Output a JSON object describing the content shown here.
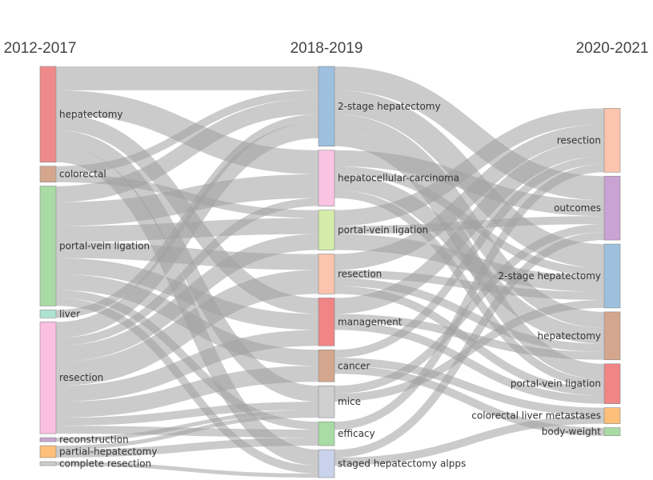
{
  "chart_data": {
    "type": "sankey",
    "columns": [
      {
        "title": "2012-2017",
        "nodes": [
          {
            "id": "a_hep",
            "label": "hepatectomy",
            "color": "#f08a8a"
          },
          {
            "id": "a_col",
            "label": "colorectal",
            "color": "#d4a68e"
          },
          {
            "id": "a_pvl",
            "label": "portal-vein ligation",
            "color": "#a9dba4"
          },
          {
            "id": "a_liv",
            "label": "liver",
            "color": "#ade3d3"
          },
          {
            "id": "a_res",
            "label": "resection",
            "color": "#fbbfe0"
          },
          {
            "id": "a_rec",
            "label": "reconstruction",
            "color": "#c9a3d3"
          },
          {
            "id": "a_par",
            "label": "partial-hepatectomy",
            "color": "#fdbf7a"
          },
          {
            "id": "a_com",
            "label": "complete resection",
            "color": "#cccccc"
          }
        ]
      },
      {
        "title": "2018-2019",
        "nodes": [
          {
            "id": "b_2st",
            "label": "2-stage hepatectomy",
            "color": "#9dc0de"
          },
          {
            "id": "b_hcc",
            "label": "hepatocellular-carcinoma",
            "color": "#fbc3e3"
          },
          {
            "id": "b_pvl",
            "label": "portal-vein ligation",
            "color": "#d5eca9"
          },
          {
            "id": "b_res",
            "label": "resection",
            "color": "#fcc4ad"
          },
          {
            "id": "b_man",
            "label": "management",
            "color": "#ef8585"
          },
          {
            "id": "b_can",
            "label": "cancer",
            "color": "#d4a68e"
          },
          {
            "id": "b_mic",
            "label": "mice",
            "color": "#d0d0d0"
          },
          {
            "id": "b_eff",
            "label": "efficacy",
            "color": "#a9dba4"
          },
          {
            "id": "b_sta",
            "label": "staged hepatectomy alpps",
            "color": "#c8d2ea"
          }
        ]
      },
      {
        "title": "2020-2021",
        "nodes": [
          {
            "id": "c_res",
            "label": "resection",
            "color": "#fcc4ad"
          },
          {
            "id": "c_out",
            "label": "outcomes",
            "color": "#c9a3d3"
          },
          {
            "id": "c_2st",
            "label": "2-stage hepatectomy",
            "color": "#9dc0de"
          },
          {
            "id": "c_hep",
            "label": "hepatectomy",
            "color": "#d4a68e"
          },
          {
            "id": "c_pvl",
            "label": "portal-vein ligation",
            "color": "#ef8585"
          },
          {
            "id": "c_clm",
            "label": "colorectal liver metastases",
            "color": "#fdbf7a"
          },
          {
            "id": "c_bw",
            "label": "body-weight",
            "color": "#a9dba4"
          }
        ]
      }
    ],
    "links": [
      {
        "source": "a_hep",
        "target": "b_2st",
        "value": 3
      },
      {
        "source": "a_hep",
        "target": "b_hcc",
        "value": 3
      },
      {
        "source": "a_hep",
        "target": "b_man",
        "value": 2
      },
      {
        "source": "a_hep",
        "target": "b_mic",
        "value": 2
      },
      {
        "source": "a_hep",
        "target": "b_sta",
        "value": 2
      },
      {
        "source": "a_col",
        "target": "b_2st",
        "value": 1
      },
      {
        "source": "a_col",
        "target": "b_pvl",
        "value": 1
      },
      {
        "source": "a_pvl",
        "target": "b_2st",
        "value": 2
      },
      {
        "source": "a_pvl",
        "target": "b_hcc",
        "value": 3
      },
      {
        "source": "a_pvl",
        "target": "b_pvl",
        "value": 2
      },
      {
        "source": "a_pvl",
        "target": "b_res",
        "value": 2
      },
      {
        "source": "a_pvl",
        "target": "b_man",
        "value": 2
      },
      {
        "source": "a_pvl",
        "target": "b_can",
        "value": 2
      },
      {
        "source": "a_pvl",
        "target": "b_eff",
        "value": 1
      },
      {
        "source": "a_pvl",
        "target": "b_sta",
        "value": 1
      },
      {
        "source": "a_liv",
        "target": "b_2st",
        "value": 1
      },
      {
        "source": "a_res",
        "target": "b_2st",
        "value": 2
      },
      {
        "source": "a_res",
        "target": "b_hcc",
        "value": 1
      },
      {
        "source": "a_res",
        "target": "b_pvl",
        "value": 2
      },
      {
        "source": "a_res",
        "target": "b_res",
        "value": 3
      },
      {
        "source": "a_res",
        "target": "b_man",
        "value": 2
      },
      {
        "source": "a_res",
        "target": "b_can",
        "value": 2
      },
      {
        "source": "a_res",
        "target": "b_mic",
        "value": 1
      },
      {
        "source": "a_res",
        "target": "b_eff",
        "value": 1
      },
      {
        "source": "a_rec",
        "target": "b_mic",
        "value": 0.5
      },
      {
        "source": "a_par",
        "target": "b_eff",
        "value": 1
      },
      {
        "source": "a_par",
        "target": "b_mic",
        "value": 0.5
      },
      {
        "source": "a_com",
        "target": "b_sta",
        "value": 0.5
      },
      {
        "source": "b_2st",
        "target": "c_out",
        "value": 3
      },
      {
        "source": "b_2st",
        "target": "c_2st",
        "value": 3
      },
      {
        "source": "b_2st",
        "target": "c_pvl",
        "value": 2
      },
      {
        "source": "b_2st",
        "target": "c_hep",
        "value": 2
      },
      {
        "source": "b_hcc",
        "target": "c_out",
        "value": 2
      },
      {
        "source": "b_hcc",
        "target": "c_2st",
        "value": 1
      },
      {
        "source": "b_hcc",
        "target": "c_hep",
        "value": 2
      },
      {
        "source": "b_hcc",
        "target": "c_pvl",
        "value": 1
      },
      {
        "source": "b_pvl",
        "target": "c_res",
        "value": 2
      },
      {
        "source": "b_pvl",
        "target": "c_out",
        "value": 1
      },
      {
        "source": "b_pvl",
        "target": "c_2st",
        "value": 2
      },
      {
        "source": "b_res",
        "target": "c_res",
        "value": 2
      },
      {
        "source": "b_res",
        "target": "c_2st",
        "value": 1
      },
      {
        "source": "b_res",
        "target": "c_hep",
        "value": 1
      },
      {
        "source": "b_res",
        "target": "c_pvl",
        "value": 1
      },
      {
        "source": "b_man",
        "target": "c_res",
        "value": 2
      },
      {
        "source": "b_man",
        "target": "c_hep",
        "value": 1
      },
      {
        "source": "b_man",
        "target": "c_pvl",
        "value": 1
      },
      {
        "source": "b_can",
        "target": "c_res",
        "value": 1
      },
      {
        "source": "b_can",
        "target": "c_clm",
        "value": 1
      },
      {
        "source": "b_can",
        "target": "c_bw",
        "value": 1
      },
      {
        "source": "b_mic",
        "target": "c_out",
        "value": 1
      },
      {
        "source": "b_mic",
        "target": "c_2st",
        "value": 1
      },
      {
        "source": "b_eff",
        "target": "c_res",
        "value": 1
      },
      {
        "source": "b_sta",
        "target": "c_out",
        "value": 1
      },
      {
        "source": "b_sta",
        "target": "c_clm",
        "value": 1
      }
    ],
    "link_color": "#a0a0a0"
  }
}
